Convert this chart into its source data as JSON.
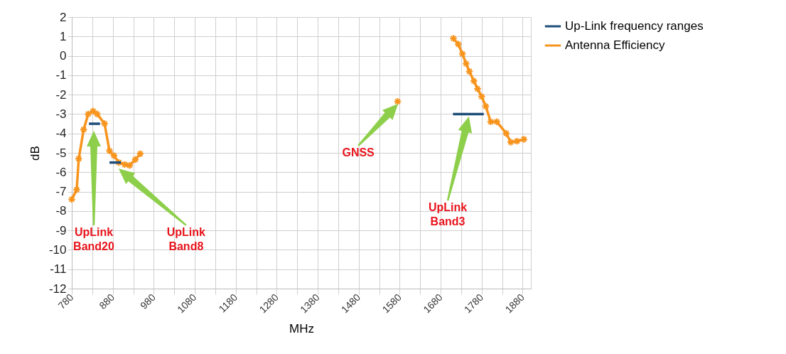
{
  "chart_data": {
    "type": "line",
    "xlabel": "MHz",
    "ylabel": "dB",
    "xlim": [
      780,
      1900
    ],
    "ylim": [
      -12,
      2
    ],
    "xticks": [
      780,
      {
        "value": 830,
        "label": null
      },
      880,
      {
        "value": 930,
        "label": null
      },
      980,
      {
        "value": 1030,
        "label": null
      },
      1080,
      {
        "value": 1130,
        "label": null
      },
      1180,
      {
        "value": 1230,
        "label": null
      },
      1280,
      {
        "value": 1330,
        "label": null
      },
      1380,
      {
        "value": 1430,
        "label": null
      },
      1480,
      {
        "value": 1530,
        "label": null
      },
      1580,
      {
        "value": 1630,
        "label": null
      },
      1680,
      {
        "value": 1730,
        "label": null
      },
      1780,
      {
        "value": 1830,
        "label": null
      },
      1880
    ],
    "yticks": [
      -12,
      -11,
      -10,
      -9,
      -8,
      -7,
      -6,
      -5,
      -4,
      -3,
      -2,
      -1,
      0,
      1,
      2
    ],
    "grid": true,
    "legend": "right",
    "line_style": "solid",
    "series": [
      {
        "name": "Up-Link frequency ranges",
        "color": "#1f4e79",
        "marker": "none",
        "x": [
          822,
          849,
          null,
          872,
          900,
          null,
          1710,
          1785
        ],
        "values": [
          -3.5,
          -3.5,
          null,
          -5.5,
          -5.5,
          null,
          -3,
          -3
        ]
      },
      {
        "name": "Antenna Efficiency",
        "color": "#f7941d",
        "marker": "cross",
        "x": [
          780,
          792,
          797,
          809,
          820,
          832,
          842,
          860,
          872,
          883,
          895,
          909,
          921,
          935,
          947,
          null,
          1575,
          null,
          1711,
          1723,
          1733,
          1742,
          1750,
          1761,
          1770,
          1780,
          1790,
          1802,
          1817,
          1840,
          1851,
          1866,
          1883
        ],
        "values": [
          -7.4,
          -6.9,
          -5.3,
          -3.8,
          -3.0,
          -2.85,
          -3.0,
          -3.5,
          -4.9,
          -5.15,
          -5.5,
          -5.6,
          -5.65,
          -5.35,
          -5.05,
          null,
          -2.35,
          null,
          0.9,
          0.6,
          0.1,
          -0.4,
          -0.8,
          -1.3,
          -1.7,
          -2.1,
          -2.6,
          -3.4,
          -3.4,
          -4.0,
          -4.45,
          -4.4,
          -4.3
        ]
      }
    ],
    "annotations": [
      "UpLink Band20",
      "UpLink Band8",
      "GNSS",
      "UpLink Band3"
    ]
  }
}
